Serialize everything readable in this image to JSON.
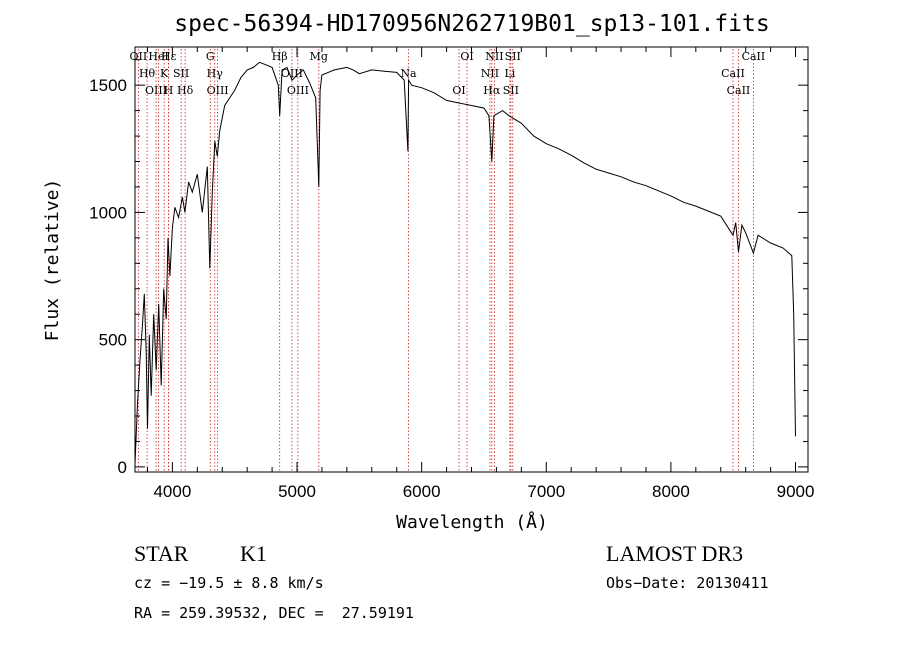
{
  "chart_data": {
    "type": "line",
    "title": "spec-56394-HD170956N262719B01_sp13-101.fits",
    "xlabel": "Wavelength (Å)",
    "ylabel": "Flux (relative)",
    "xlim": [
      3700,
      9100
    ],
    "ylim": [
      -20,
      1650
    ],
    "xticks": [
      4000,
      5000,
      6000,
      7000,
      8000,
      9000
    ],
    "xtick_labels": [
      "4000",
      "5000",
      "6000",
      "7000",
      "8000",
      "9000"
    ],
    "yticks": [
      0,
      500,
      1000,
      1500
    ],
    "ytick_labels": [
      "0",
      "500",
      "1000",
      "1500"
    ],
    "series": [
      {
        "name": "spectrum",
        "x": [
          3700,
          3720,
          3740,
          3760,
          3775,
          3790,
          3800,
          3815,
          3830,
          3850,
          3870,
          3890,
          3910,
          3930,
          3950,
          3965,
          3980,
          4000,
          4020,
          4050,
          4080,
          4100,
          4130,
          4160,
          4200,
          4240,
          4280,
          4300,
          4320,
          4340,
          4360,
          4380,
          4420,
          4460,
          4500,
          4550,
          4600,
          4650,
          4700,
          4750,
          4800,
          4850,
          4861,
          4880,
          4920,
          4960,
          5000,
          5050,
          5100,
          5150,
          5175,
          5185,
          5200,
          5250,
          5300,
          5350,
          5400,
          5450,
          5500,
          5600,
          5700,
          5800,
          5860,
          5890,
          5895,
          5920,
          6000,
          6100,
          6200,
          6300,
          6400,
          6500,
          6540,
          6563,
          6580,
          6650,
          6700,
          6800,
          6900,
          7000,
          7100,
          7200,
          7300,
          7400,
          7500,
          7600,
          7700,
          7800,
          7900,
          8000,
          8100,
          8200,
          8300,
          8400,
          8498,
          8520,
          8542,
          8570,
          8600,
          8662,
          8700,
          8800,
          8900,
          8970,
          8985,
          9000
        ],
        "y": [
          10,
          250,
          420,
          560,
          680,
          450,
          150,
          520,
          280,
          600,
          380,
          640,
          320,
          700,
          580,
          900,
          750,
          940,
          1020,
          980,
          1060,
          1000,
          1120,
          1080,
          1150,
          1000,
          1180,
          780,
          1080,
          1280,
          1220,
          1320,
          1420,
          1450,
          1480,
          1530,
          1560,
          1570,
          1590,
          1580,
          1570,
          1500,
          1380,
          1560,
          1570,
          1520,
          1540,
          1560,
          1510,
          1450,
          1100,
          1480,
          1540,
          1550,
          1560,
          1565,
          1570,
          1560,
          1545,
          1560,
          1555,
          1550,
          1520,
          1240,
          1520,
          1500,
          1490,
          1470,
          1440,
          1430,
          1420,
          1410,
          1380,
          1200,
          1380,
          1400,
          1380,
          1350,
          1300,
          1270,
          1250,
          1225,
          1195,
          1170,
          1155,
          1140,
          1120,
          1105,
          1085,
          1065,
          1040,
          1025,
          1005,
          985,
          910,
          960,
          845,
          950,
          920,
          840,
          910,
          880,
          860,
          830,
          600,
          120
        ]
      }
    ],
    "annotations": {
      "lines": [
        {
          "label": "OII",
          "x": 3727
        },
        {
          "label": "Hθ",
          "x": 3797
        },
        {
          "label": "OIII",
          "x": 3869
        },
        {
          "label": "HeI",
          "x": 3889
        },
        {
          "label": "K",
          "x": 3934
        },
        {
          "label": "H",
          "x": 3969
        },
        {
          "label": "Hε",
          "x": 3970
        },
        {
          "label": "SII",
          "x": 4070
        },
        {
          "label": "Hδ",
          "x": 4102
        },
        {
          "label": "G",
          "x": 4304
        },
        {
          "label": "Hγ",
          "x": 4340
        },
        {
          "label": "OIII",
          "x": 4363
        },
        {
          "label": "Hβ",
          "x": 4861
        },
        {
          "label": "OIII",
          "x": 4959
        },
        {
          "label": "OIII",
          "x": 5007
        },
        {
          "label": "Mg",
          "x": 5175
        },
        {
          "label": "Na",
          "x": 5894
        },
        {
          "label": "OI",
          "x": 6300
        },
        {
          "label": "OI",
          "x": 6364
        },
        {
          "label": "NII",
          "x": 6548
        },
        {
          "label": "Hα",
          "x": 6563
        },
        {
          "label": "NII",
          "x": 6584
        },
        {
          "label": "Li",
          "x": 6708
        },
        {
          "label": "SII",
          "x": 6716
        },
        {
          "label": "SII",
          "x": 6731
        },
        {
          "label": "CaII",
          "x": 8498
        },
        {
          "label": "CaII",
          "x": 8542
        },
        {
          "label": "CaII",
          "x": 8662
        }
      ]
    }
  },
  "info": {
    "class_text": "STAR",
    "subclass_text": "K1",
    "survey": "LAMOST DR3",
    "cz": "cz = −19.5 ± 8.8 km/s",
    "obs_date": "Obs−Date: 20130411",
    "coords": "RA = 259.39532, DEC =  27.59191"
  },
  "colors": {
    "foreground": "#000000",
    "line_marker": "#cc2222",
    "background": "#ffffff"
  }
}
